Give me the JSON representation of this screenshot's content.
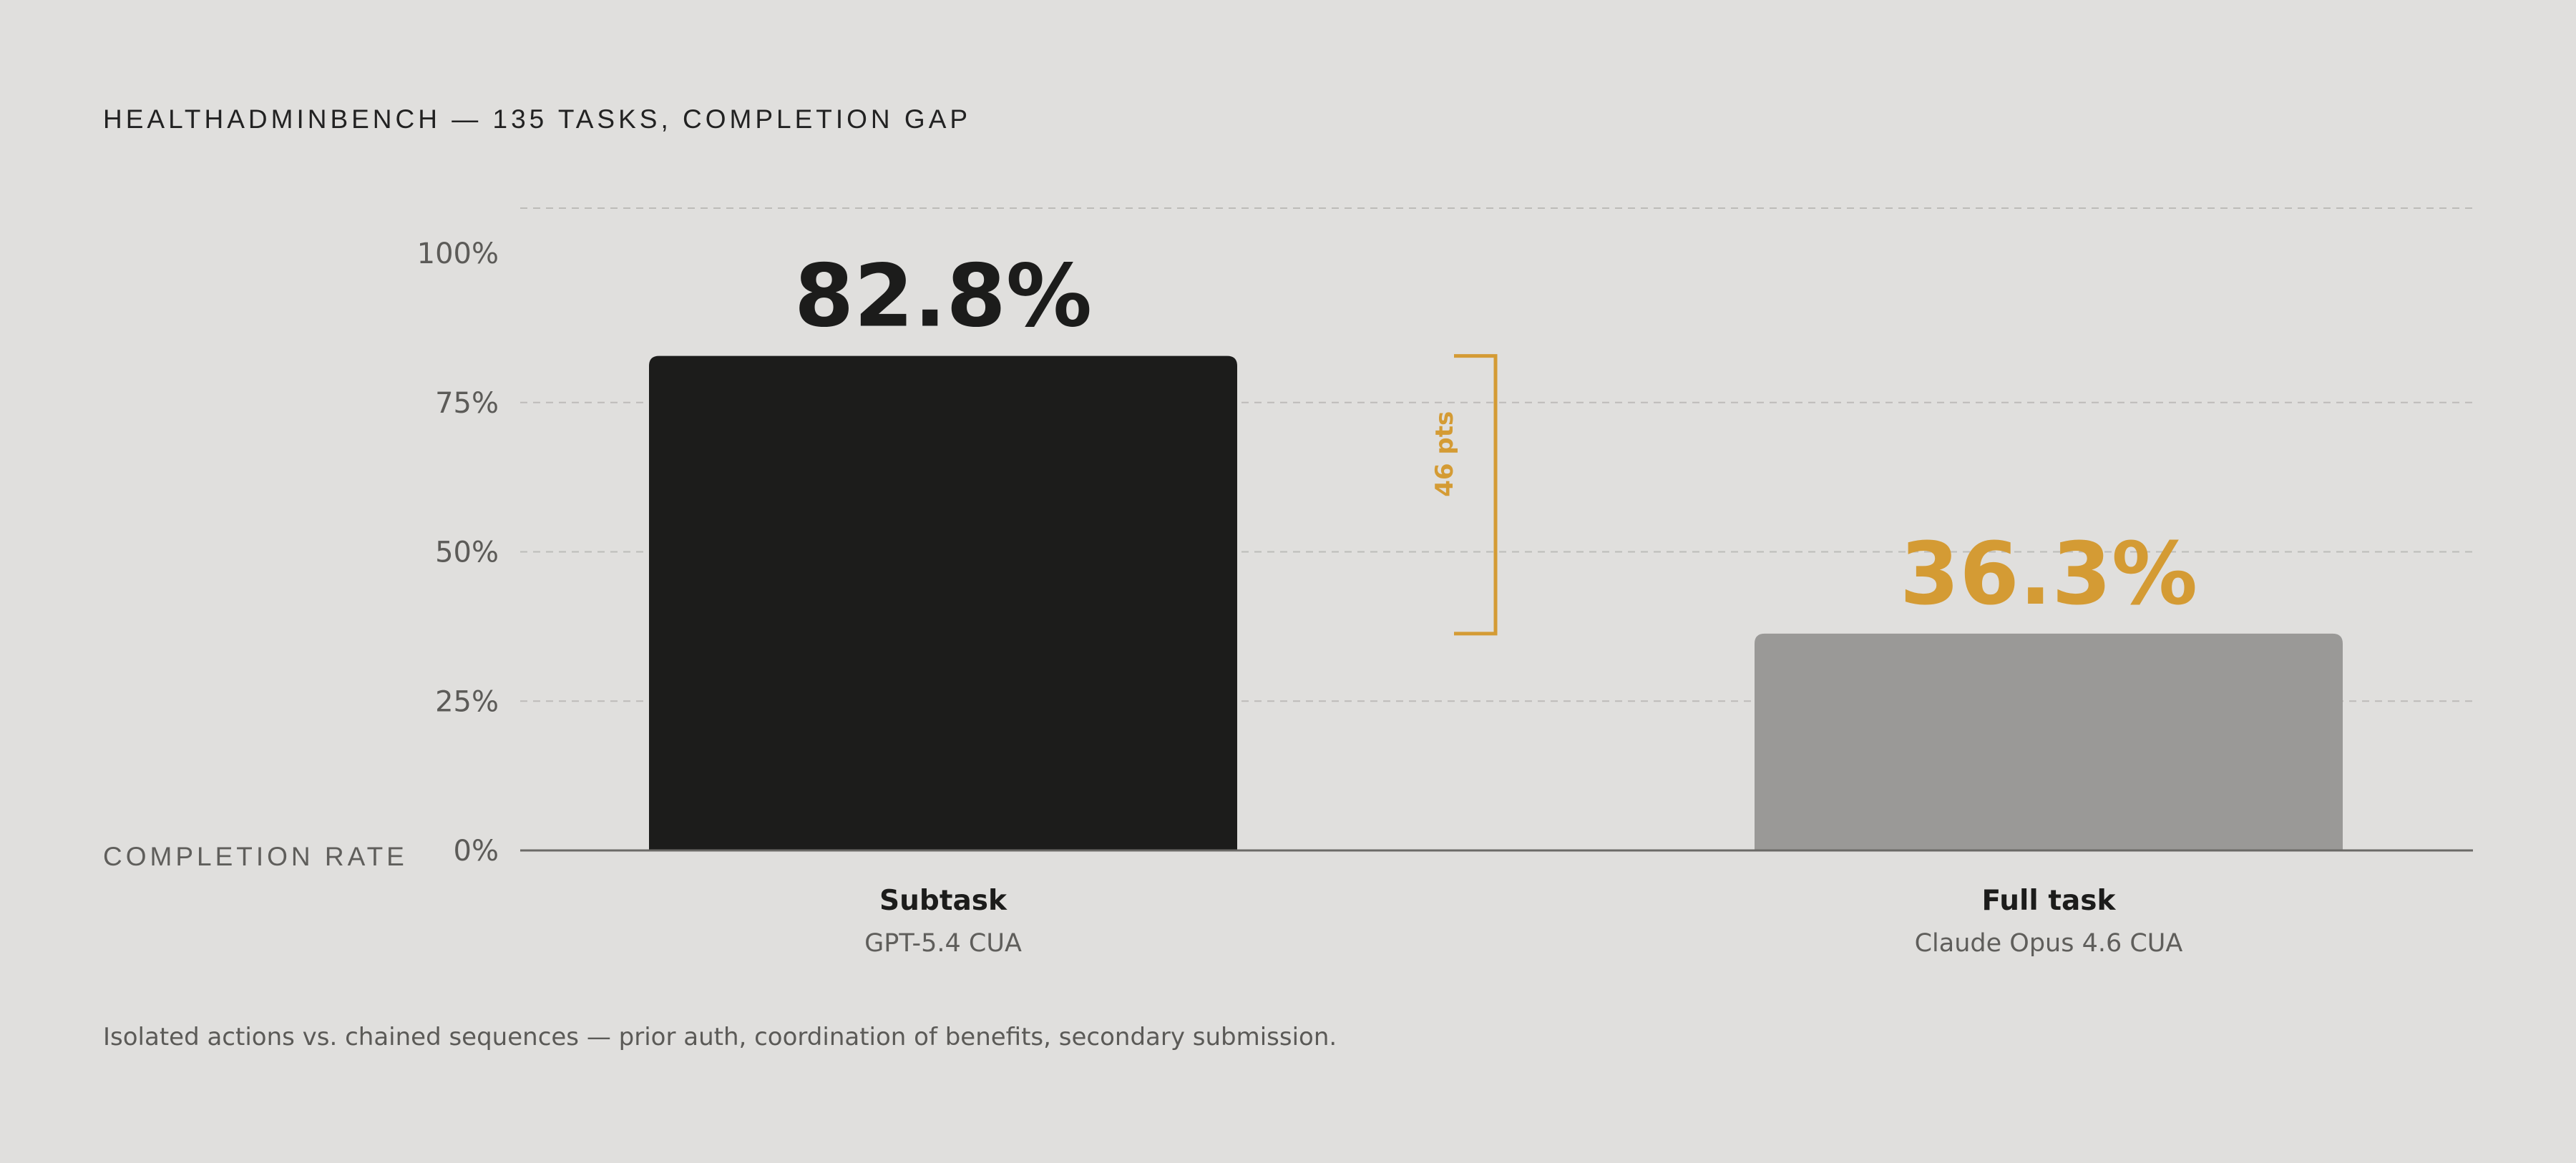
{
  "heading": "HEALTHADMINBENCH — 135 TASKS, COMPLETION GAP",
  "footnote": "Isolated actions vs. chained sequences — prior auth, coordination of benefits, secondary submission.",
  "colors": {
    "background": "#e0dfdd",
    "bar_primary": "#1c1c1b",
    "bar_secondary": "#9a9997",
    "accent": "#d49b34"
  },
  "chart_data": {
    "type": "bar",
    "title": "HEALTHADMINBENCH — 135 TASKS, COMPLETION GAP",
    "ylabel": "COMPLETION RATE",
    "ylim": [
      0,
      100
    ],
    "yticks": [
      "100%",
      "75%",
      "50%",
      "25%",
      "0%"
    ],
    "grid": true,
    "categories": [
      "Subtask",
      "Full task"
    ],
    "subtitles": [
      "GPT-5.4 CUA",
      "Claude Opus 4.6 CUA"
    ],
    "values": [
      82.8,
      36.3
    ],
    "value_labels": [
      "82.8%",
      "36.3%"
    ],
    "annotation": "46 pts"
  }
}
